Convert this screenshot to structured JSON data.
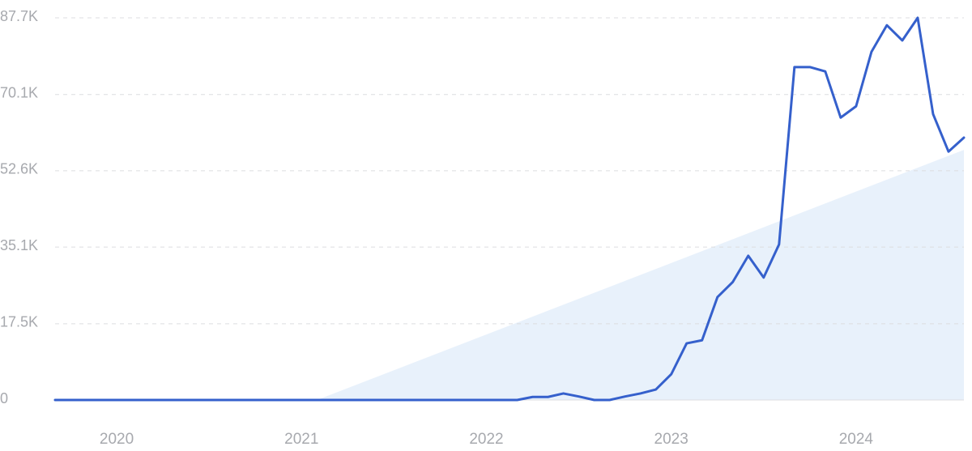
{
  "chart_data": {
    "type": "line",
    "x": [
      "2019-09",
      "2019-10",
      "2019-11",
      "2019-12",
      "2020-01",
      "2020-02",
      "2020-03",
      "2020-04",
      "2020-05",
      "2020-06",
      "2020-07",
      "2020-08",
      "2020-09",
      "2020-10",
      "2020-11",
      "2020-12",
      "2021-01",
      "2021-02",
      "2021-03",
      "2021-04",
      "2021-05",
      "2021-06",
      "2021-07",
      "2021-08",
      "2021-09",
      "2021-10",
      "2021-11",
      "2021-12",
      "2022-01",
      "2022-02",
      "2022-03",
      "2022-04",
      "2022-05",
      "2022-06",
      "2022-07",
      "2022-08",
      "2022-09",
      "2022-10",
      "2022-11",
      "2022-12",
      "2023-01",
      "2023-02",
      "2023-03",
      "2023-04",
      "2023-05",
      "2023-06",
      "2023-07",
      "2023-08",
      "2023-09",
      "2023-10",
      "2023-11",
      "2023-12",
      "2024-01",
      "2024-02",
      "2024-03",
      "2024-04",
      "2024-05",
      "2024-06",
      "2024-07",
      "2024-08"
    ],
    "values": [
      0,
      0,
      0,
      0,
      0,
      0,
      0,
      0,
      0,
      0,
      0,
      0,
      0,
      0,
      0,
      0,
      0,
      0,
      0,
      0,
      0,
      0,
      0,
      0,
      0,
      0,
      0,
      0,
      0,
      0,
      0,
      700,
      700,
      1500,
      800,
      0,
      0,
      800,
      1500,
      2400,
      5900,
      13000,
      13700,
      23600,
      27100,
      33100,
      28100,
      35700,
      76400,
      76400,
      75400,
      64800,
      67400,
      79900,
      86000,
      82500,
      87700,
      65600,
      57000,
      60200
    ],
    "color": "#3560cc",
    "trend": {
      "x": [
        "2021-02",
        "2024-08"
      ],
      "values": [
        0,
        57400
      ],
      "color": "#e6effb"
    },
    "xlim": [
      "2019-09",
      "2024-08"
    ],
    "xticks": [
      {
        "value": "2020-01",
        "label": "2020"
      },
      {
        "value": "2021-01",
        "label": "2021"
      },
      {
        "value": "2022-01",
        "label": "2022"
      },
      {
        "value": "2023-01",
        "label": "2023"
      },
      {
        "value": "2024-01",
        "label": "2024"
      }
    ],
    "ylim": [
      0,
      87700
    ],
    "yticks": [
      0,
      {
        "value": 17500,
        "label": "17.5K"
      },
      {
        "value": 35100,
        "label": "35.1K"
      },
      {
        "value": 52600,
        "label": "52.6K"
      },
      {
        "value": 70100,
        "label": "70.1K"
      },
      {
        "value": 87700,
        "label": "87.7K"
      }
    ],
    "grid": true
  }
}
